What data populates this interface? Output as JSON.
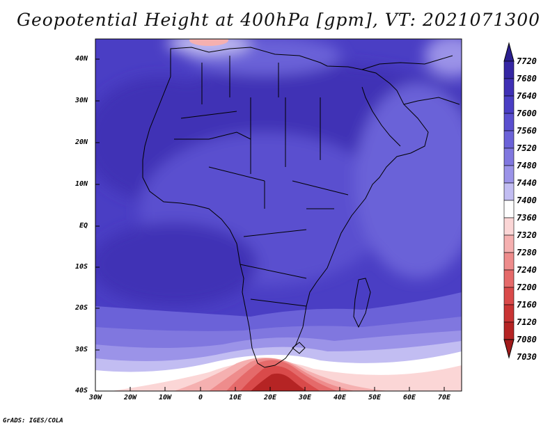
{
  "title": "Geopotential Height at 400hPa [gpm], VT: 2021071300",
  "footer": "GrADS: IGES/COLA",
  "map": {
    "lat_labels": [
      "40N",
      "30N",
      "20N",
      "10N",
      "EQ",
      "10S",
      "20S",
      "30S",
      "40S"
    ],
    "lon_labels": [
      "30W",
      "20W",
      "10W",
      "0",
      "10E",
      "20E",
      "30E",
      "40E",
      "50E",
      "60E",
      "70E"
    ]
  },
  "colorbar": {
    "labels": [
      "7720",
      "7680",
      "7640",
      "7600",
      "7560",
      "7520",
      "7480",
      "7440",
      "7400",
      "7360",
      "7320",
      "7280",
      "7240",
      "7200",
      "7160",
      "7120",
      "7080",
      "7030"
    ],
    "colors": [
      "#2b1f8f",
      "#3526a3",
      "#3f30b5",
      "#4a3ec4",
      "#5a4fcf",
      "#6b62d8",
      "#8077df",
      "#9b93e8",
      "#c2bdf2",
      "#ffffff",
      "#fbd6d6",
      "#f5b0b0",
      "#ee8c8c",
      "#e56a6a",
      "#d94a4a",
      "#c93434",
      "#b52424",
      "#a11a1a"
    ]
  }
}
